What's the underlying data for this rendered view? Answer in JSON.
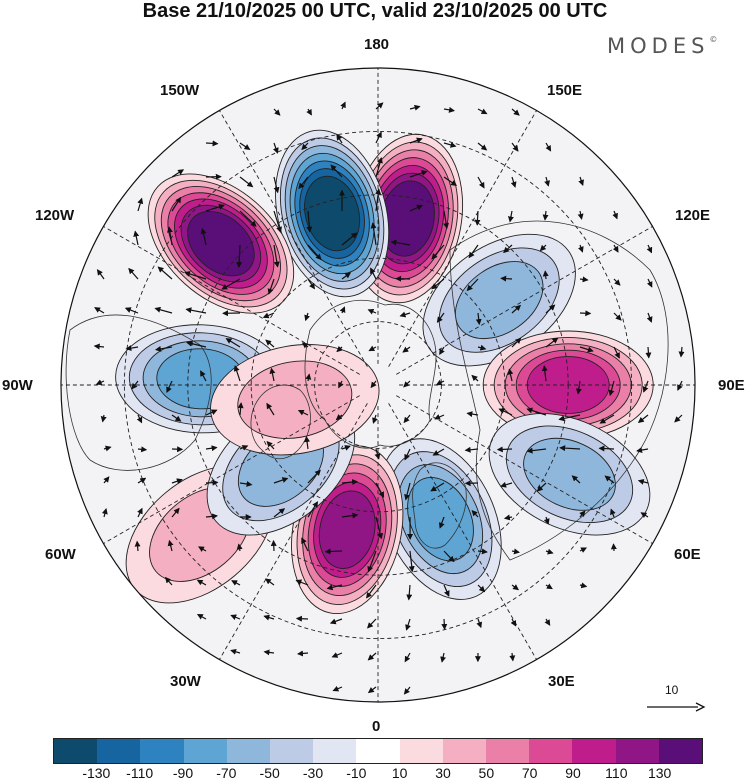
{
  "title": "Base 21/10/2025 00 UTC, valid 23/10/2025 00 UTC",
  "brand": "MODES",
  "brand_mark": "©",
  "longitude_labels": {
    "lon_180": "180",
    "lon_150e": "150E",
    "lon_120e": "120E",
    "lon_90e": "90E",
    "lon_60e": "60E",
    "lon_30e": "30E",
    "lon_0": "0",
    "lon_30w": "30W",
    "lon_60w": "60W",
    "lon_90w": "90W",
    "lon_120w": "120W",
    "lon_150w": "150W"
  },
  "reference_vector": {
    "label": "10"
  },
  "colorbar": {
    "colors": [
      "#0d4a6b",
      "#1665a0",
      "#2e82c0",
      "#5fa5d4",
      "#8fb7dc",
      "#bdcbe6",
      "#e2e6f2",
      "#ffffff",
      "#fbdbe0",
      "#f4b0c2",
      "#ea7fa8",
      "#dc4a95",
      "#c01d8c",
      "#901686",
      "#5a0e78"
    ],
    "ticks": [
      "-130",
      "-110",
      "-90",
      "-70",
      "-50",
      "-30",
      "-10",
      "10",
      "30",
      "50",
      "70",
      "90",
      "110",
      "130"
    ]
  },
  "anomaly_centers": [
    {
      "name": "pos-north-pacific-west",
      "lon": 170,
      "lat": 50,
      "value": 130
    },
    {
      "name": "neg-bering-alaska",
      "lon": -165,
      "lat": 48,
      "value": -130
    },
    {
      "name": "pos-gulf-of-alaska",
      "lon": -132,
      "lat": 40,
      "value": 130
    },
    {
      "name": "neg-hudson-canada",
      "lon": -92,
      "lat": 48,
      "value": -70
    },
    {
      "name": "neg-east-siberia",
      "lon": 125,
      "lat": 55,
      "value": -50
    },
    {
      "name": "pos-central-siberia",
      "lon": 90,
      "lat": 45,
      "value": 90
    },
    {
      "name": "neg-west-russia",
      "lon": 65,
      "lat": 40,
      "value": -50
    },
    {
      "name": "neg-scandinavia",
      "lon": 25,
      "lat": 55,
      "value": -70
    },
    {
      "name": "pos-eastern-atlantic",
      "lon": -12,
      "lat": 55,
      "value": 110
    },
    {
      "name": "pos-north-atlantic-west",
      "lon": -50,
      "lat": 35,
      "value": 30
    },
    {
      "name": "neg-labrador",
      "lon": -50,
      "lat": 60,
      "value": -50
    },
    {
      "name": "pos-greenland-west",
      "lon": -80,
      "lat": 70,
      "value": 30
    }
  ]
}
